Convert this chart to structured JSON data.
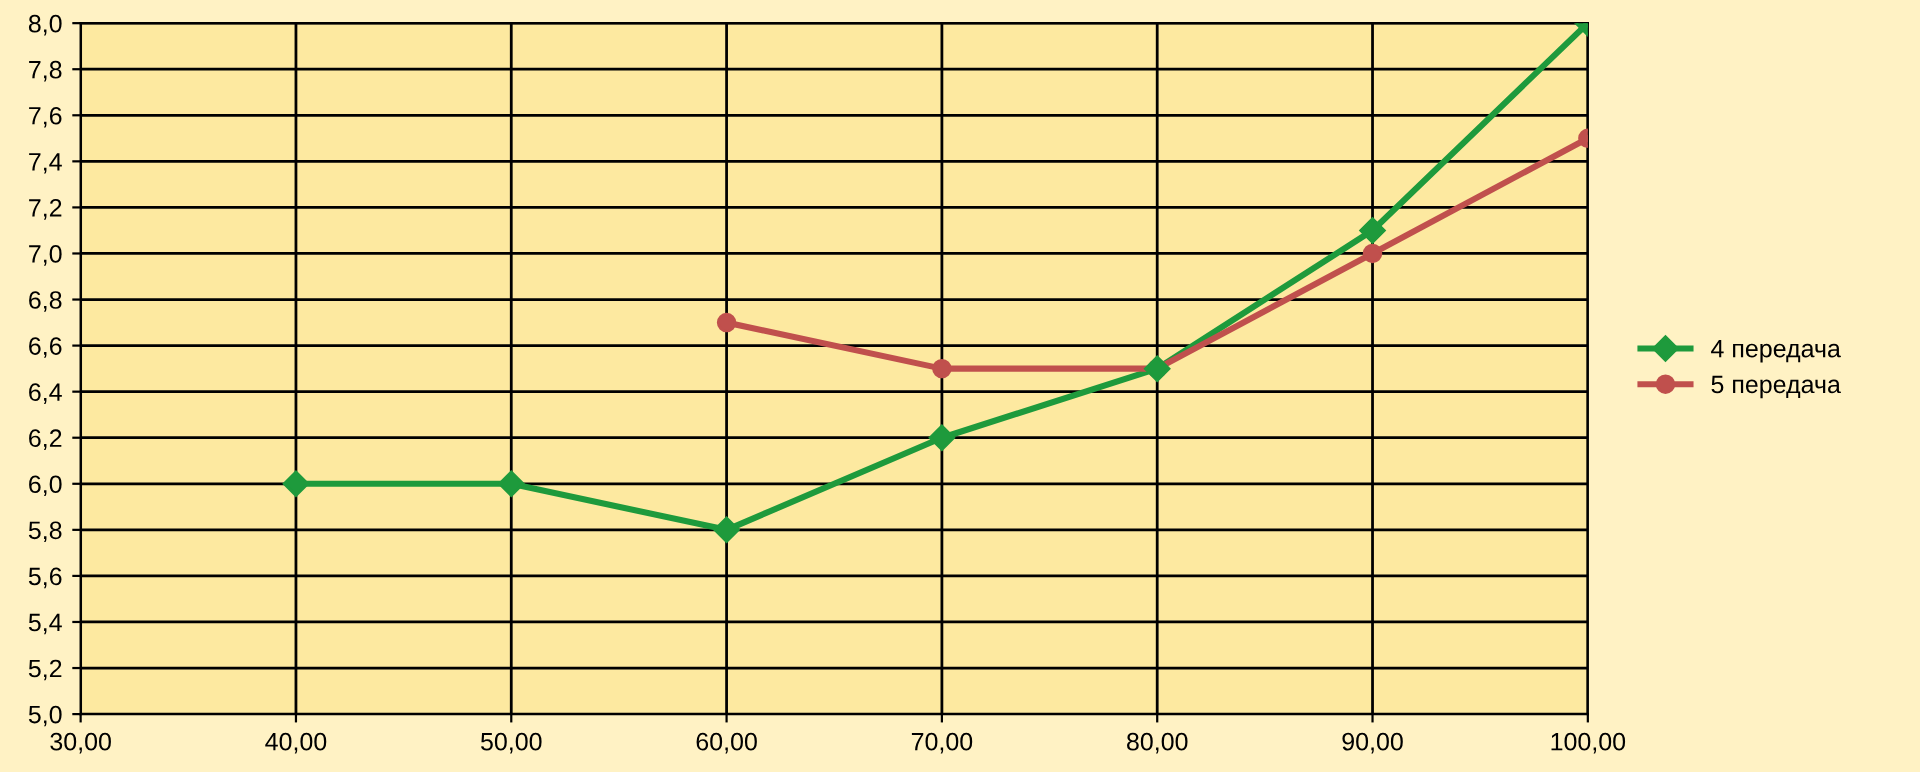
{
  "chart_data": {
    "type": "line",
    "series": [
      {
        "name": "4 передача",
        "color": "#1e9a3c",
        "marker": "diamond",
        "x": [
          40,
          50,
          60,
          70,
          80,
          90,
          100
        ],
        "values": [
          6.0,
          6.0,
          5.8,
          6.2,
          6.5,
          7.1,
          8.0
        ]
      },
      {
        "name": "5 передача",
        "color": "#c0504d",
        "marker": "circle",
        "x": [
          60,
          70,
          80,
          90,
          100
        ],
        "values": [
          6.7,
          6.5,
          6.5,
          7.0,
          7.5
        ]
      }
    ],
    "xlim": [
      30,
      100
    ],
    "ylim": [
      5.0,
      8.0
    ],
    "xticks": [
      {
        "value": 30,
        "label": "30,00"
      },
      {
        "value": 40,
        "label": "40,00"
      },
      {
        "value": 50,
        "label": "50,00"
      },
      {
        "value": 60,
        "label": "60,00"
      },
      {
        "value": 70,
        "label": "70,00"
      },
      {
        "value": 80,
        "label": "80,00"
      },
      {
        "value": 90,
        "label": "90,00"
      },
      {
        "value": 100,
        "label": "100,00"
      }
    ],
    "yticks": [
      {
        "value": 5.0,
        "label": "5,0"
      },
      {
        "value": 5.2,
        "label": "5,2"
      },
      {
        "value": 5.4,
        "label": "5,4"
      },
      {
        "value": 5.6,
        "label": "5,6"
      },
      {
        "value": 5.8,
        "label": "5,8"
      },
      {
        "value": 6.0,
        "label": "6,0"
      },
      {
        "value": 6.2,
        "label": "6,2"
      },
      {
        "value": 6.4,
        "label": "6,4"
      },
      {
        "value": 6.6,
        "label": "6,6"
      },
      {
        "value": 6.8,
        "label": "6,8"
      },
      {
        "value": 7.0,
        "label": "7,0"
      },
      {
        "value": 7.2,
        "label": "7,2"
      },
      {
        "value": 7.4,
        "label": "7,4"
      },
      {
        "value": 7.6,
        "label": "7,6"
      },
      {
        "value": 7.8,
        "label": "7,8"
      },
      {
        "value": 8.0,
        "label": "8,0"
      }
    ],
    "grid": true,
    "legend": "right",
    "line_style": "solid"
  }
}
